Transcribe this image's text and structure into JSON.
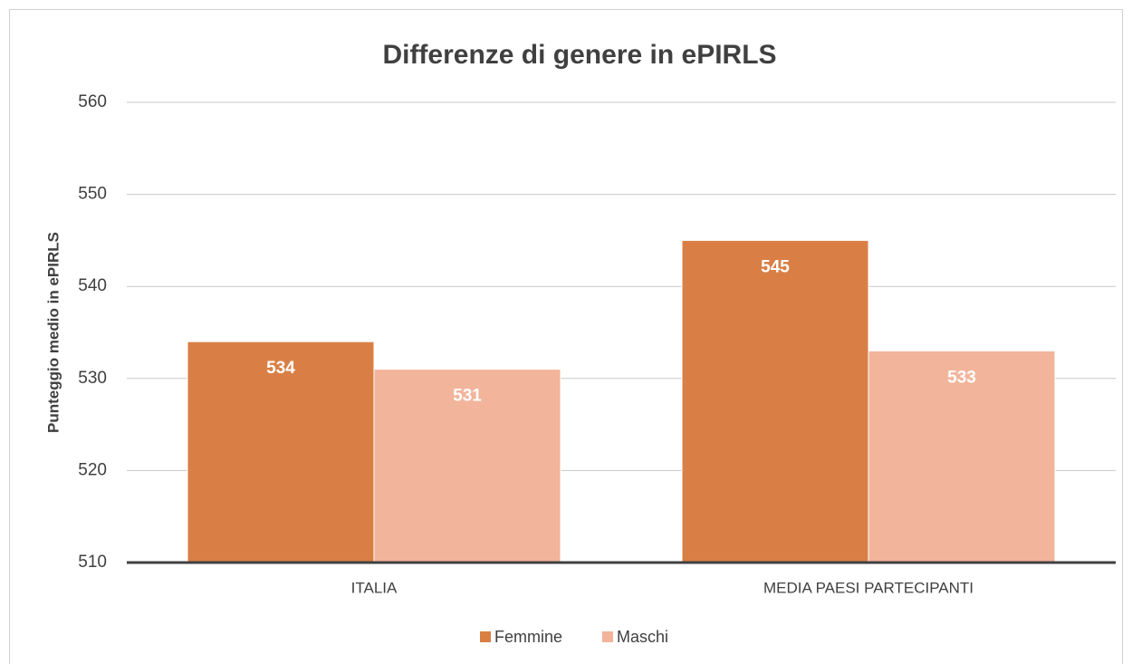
{
  "chart_data": {
    "type": "bar",
    "title": "Differenze di genere in ePIRLS",
    "y_label": "Punteggio medio in ePIRLS",
    "categories": [
      "ITALIA",
      "MEDIA PAESI PARTECIPANTI"
    ],
    "series": [
      {
        "name": "Femmine",
        "color": "#d97f45",
        "values": [
          534,
          545
        ]
      },
      {
        "name": "Maschi",
        "color": "#f2b49b",
        "values": [
          531,
          533
        ]
      }
    ],
    "ylim": [
      510,
      560
    ],
    "yticks": [
      510,
      520,
      530,
      540,
      550,
      560
    ],
    "grid": true,
    "legend": "bottom"
  }
}
